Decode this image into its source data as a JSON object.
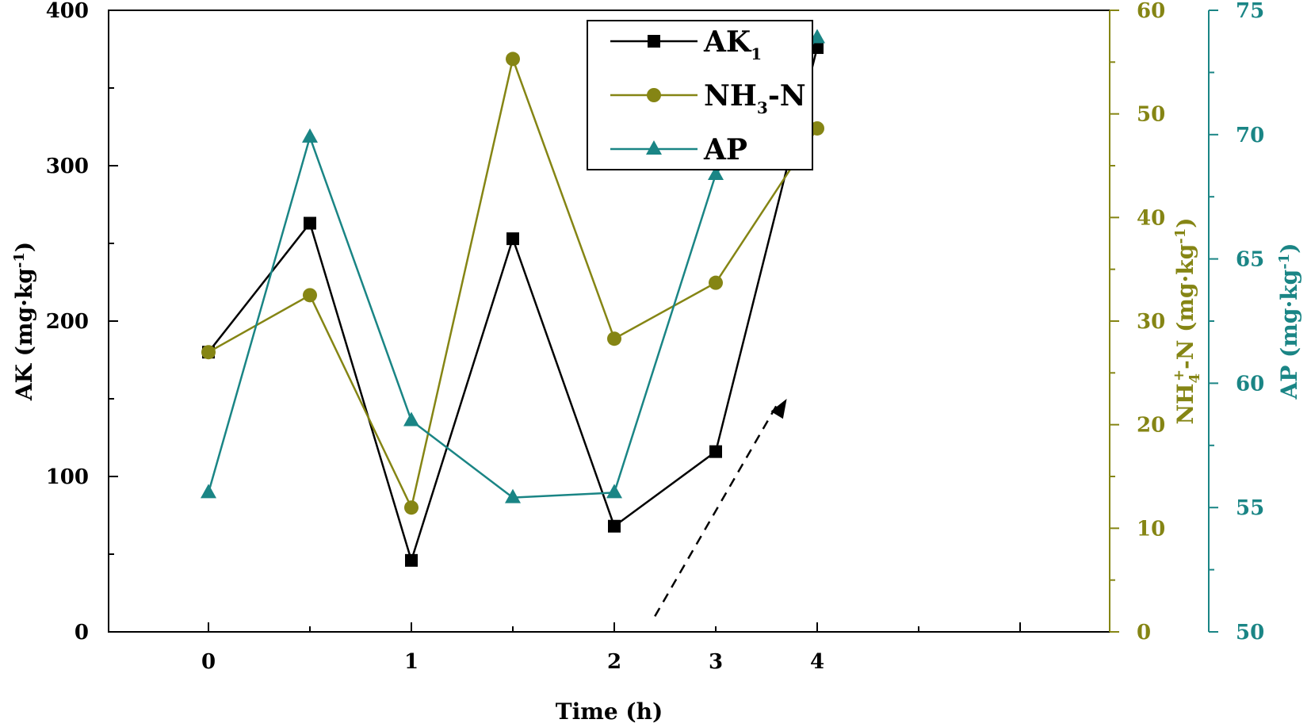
{
  "chart_data": {
    "type": "line",
    "xlabel": "Time (h)",
    "x_ticks": [
      "0",
      "1",
      "2",
      "3",
      "4"
    ],
    "x": [
      0,
      0.5,
      1,
      1.5,
      2,
      3,
      4
    ],
    "x_category_positions": [
      0,
      1,
      2,
      3,
      4,
      5,
      6
    ],
    "axes": {
      "left": {
        "label": "AK (mg·kg",
        "sup": "-1",
        "close": ")",
        "ylim": [
          0,
          400
        ],
        "ticks": [
          "0",
          "100",
          "200",
          "300",
          "400"
        ],
        "color": "#000000"
      },
      "right1": {
        "label_pre": "NH",
        "label_sub": "4",
        "label_sup": "+",
        "label_post": "-N (mg·kg",
        "label_sup2": "-1",
        "label_close": ")",
        "ylim": [
          0,
          60
        ],
        "ticks": [
          "0",
          "10",
          "20",
          "30",
          "40",
          "50",
          "60"
        ],
        "color": "#858514"
      },
      "right2": {
        "label": "AP (mg·kg",
        "sup": "-1",
        "close": ")",
        "ylim": [
          50,
          75
        ],
        "ticks": [
          "50",
          "55",
          "60",
          "65",
          "70",
          "75"
        ],
        "color": "#1a8585"
      }
    },
    "series": [
      {
        "name": "AK",
        "legend_text": "AK",
        "legend_sub": "1",
        "axis": "left",
        "marker": "square",
        "color": "#000000",
        "values": [
          180,
          263,
          46,
          253,
          68,
          116,
          376
        ]
      },
      {
        "name": "NH3-N",
        "legend_text": "NH",
        "legend_sub": "3",
        "legend_post": "-N",
        "axis": "right1",
        "marker": "circle",
        "color": "#858514",
        "values": [
          27,
          32.5,
          12,
          55.3,
          28.3,
          33.7,
          48.6
        ]
      },
      {
        "name": "AP",
        "legend_text": "AP",
        "axis": "right2",
        "marker": "triangle",
        "color": "#1a8585",
        "values": [
          55.6,
          69.9,
          58.5,
          55.4,
          55.6,
          68.4,
          73.9
        ]
      }
    ],
    "annotation": {
      "type": "dashed-arrow",
      "from": [
        2.4,
        10
      ],
      "to": [
        3.7,
        150
      ],
      "axis": "left",
      "color": "#000000"
    }
  }
}
